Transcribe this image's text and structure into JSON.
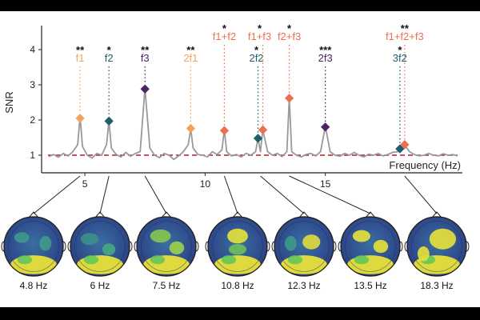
{
  "chart_data": {
    "type": "line",
    "xlabel": "Frequency (Hz)",
    "ylabel": "SNR",
    "xlim": [
      3.2,
      20.7
    ],
    "ylim": [
      0.5,
      4.5
    ],
    "xticks": [
      5,
      10,
      15
    ],
    "yticks": [
      1,
      2,
      3,
      4
    ],
    "baseline": 1,
    "baseline_color": "#b2182b",
    "line_color": "#999999",
    "series": [
      {
        "x": [
          3.5,
          3.7,
          3.9,
          4.1,
          4.3,
          4.5,
          4.7,
          4.8,
          4.9,
          5.1,
          5.3,
          5.5,
          5.7,
          5.9,
          6.0,
          6.1,
          6.3,
          6.5,
          6.7,
          6.9,
          7.1,
          7.3,
          7.5,
          7.7,
          7.9,
          8.1,
          8.3,
          8.5,
          8.7,
          8.9,
          9.1,
          9.3,
          9.4,
          9.5,
          9.7,
          9.9,
          10.1,
          10.3,
          10.5,
          10.7,
          10.8,
          10.9,
          11.1,
          11.3,
          11.5,
          11.7,
          11.9,
          12.1,
          12.2,
          12.3,
          12.4,
          12.6,
          12.8,
          13.0,
          13.2,
          13.4,
          13.5,
          13.6,
          13.8,
          14.0,
          14.2,
          14.4,
          14.6,
          14.8,
          15.0,
          15.2,
          15.4,
          15.6,
          15.8,
          16.0,
          16.2,
          16.4,
          16.6,
          16.8,
          17.0,
          17.2,
          17.4,
          17.6,
          17.8,
          18.0,
          18.1,
          18.3,
          18.5,
          18.7,
          18.9,
          19.1,
          19.3,
          19.5,
          19.7,
          19.9,
          20.1,
          20.3,
          20.5
        ],
        "y": [
          0.96,
          1.02,
          0.94,
          1.05,
          0.98,
          1.1,
          1.3,
          2.1,
          1.25,
          1.0,
          0.92,
          1.05,
          1.0,
          1.3,
          1.98,
          1.2,
          1.02,
          0.95,
          1.08,
          0.97,
          1.05,
          1.1,
          2.9,
          1.2,
          1.0,
          0.93,
          1.05,
          1.0,
          0.88,
          0.98,
          1.1,
          1.3,
          1.75,
          1.2,
          1.02,
          1.0,
          0.95,
          1.1,
          1.02,
          1.15,
          1.72,
          1.1,
          0.98,
          1.02,
          0.95,
          1.05,
          1.0,
          1.1,
          1.48,
          1.1,
          1.72,
          1.1,
          1.0,
          1.05,
          0.96,
          1.1,
          2.62,
          1.1,
          1.0,
          0.95,
          1.02,
          1.05,
          0.98,
          1.1,
          1.82,
          1.1,
          1.0,
          0.97,
          1.05,
          1.0,
          1.08,
          1.0,
          0.95,
          1.03,
          1.0,
          1.05,
          0.98,
          1.02,
          1.08,
          1.1,
          1.18,
          1.28,
          1.1,
          1.02,
          0.98,
          1.0,
          1.05,
          1.0,
          0.98,
          1.04,
          1.0,
          1.02,
          0.98
        ]
      }
    ],
    "peaks": [
      {
        "label": "f1",
        "stars": "**",
        "x": 4.8,
        "y": 2.05,
        "color": "#f4a259"
      },
      {
        "label": "f2",
        "stars": "*",
        "x": 6.0,
        "y": 1.97,
        "color": "#1f5f6b"
      },
      {
        "label": "f3",
        "stars": "**",
        "x": 7.5,
        "y": 2.88,
        "color": "#4a2460"
      },
      {
        "label": "2f1",
        "stars": "**",
        "x": 9.4,
        "y": 1.76,
        "color": "#f4a259"
      },
      {
        "label": "f1+f2",
        "stars": "*",
        "x": 10.8,
        "y": 1.7,
        "color": "#ec6f4f"
      },
      {
        "label": "2f2",
        "stars": "*",
        "x": 12.2,
        "y": 1.48,
        "color": "#1f5f6b"
      },
      {
        "label": "f1+f3",
        "stars": "*",
        "x": 12.4,
        "y": 1.72,
        "color": "#ec6f4f"
      },
      {
        "label": "f2+f3",
        "stars": "*",
        "x": 13.5,
        "y": 2.62,
        "color": "#ec6f4f"
      },
      {
        "label": "2f3",
        "stars": "***",
        "x": 15.0,
        "y": 1.8,
        "color": "#4a2460"
      },
      {
        "label": "3f2",
        "stars": "*",
        "x": 18.1,
        "y": 1.18,
        "color": "#1f5f6b"
      },
      {
        "label": "f1+f2+f3",
        "stars": "**",
        "x": 18.3,
        "y": 1.3,
        "color": "#ec6f4f"
      }
    ],
    "topomaps": [
      {
        "freq": 4.8,
        "label": "4.8 Hz"
      },
      {
        "freq": 6.0,
        "label": "6 Hz"
      },
      {
        "freq": 7.5,
        "label": "7.5 Hz"
      },
      {
        "freq": 10.8,
        "label": "10.8 Hz"
      },
      {
        "freq": 12.3,
        "label": "12.3 Hz"
      },
      {
        "freq": 13.5,
        "label": "13.5 Hz"
      },
      {
        "freq": 18.3,
        "label": "18.3 Hz"
      }
    ]
  }
}
